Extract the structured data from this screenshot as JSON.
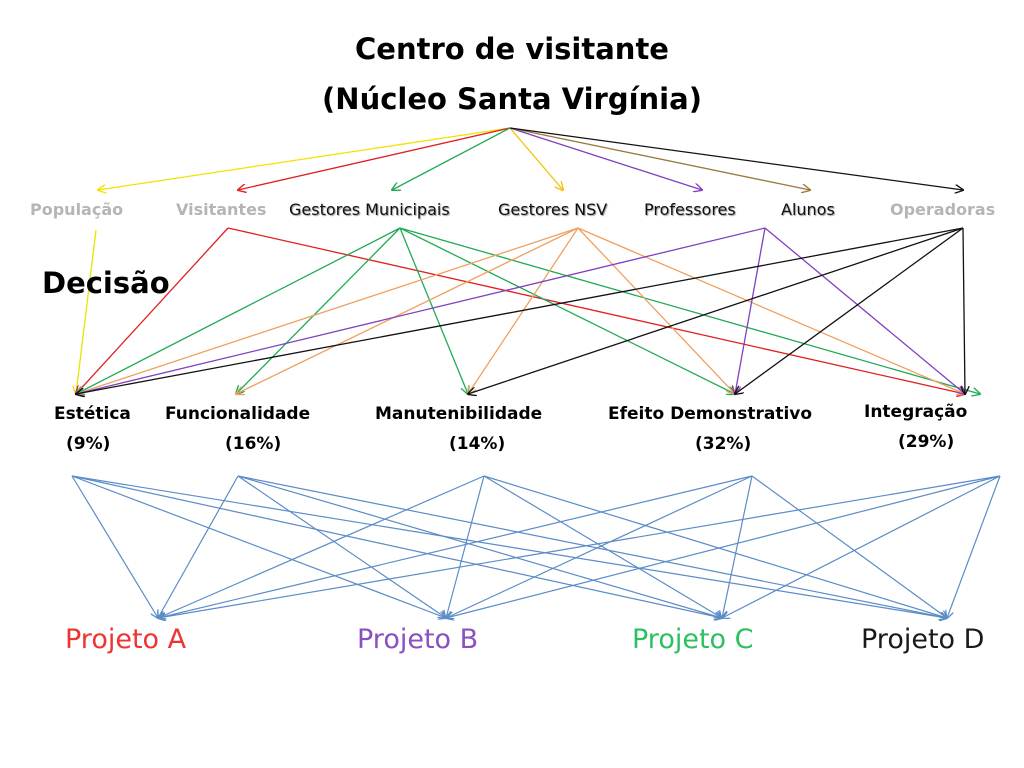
{
  "title": {
    "line1": "Centro de visitante",
    "line2": "(Núcleo Santa Virgínia)"
  },
  "decision_label": "Decisão",
  "stakeholders": [
    {
      "id": "pop",
      "label": "População",
      "color": "#e6e600"
    },
    {
      "id": "vis",
      "label": "Visitantes",
      "color": "#e02020"
    },
    {
      "id": "gm",
      "label": "Gestores Municipais",
      "color": "#22aa55"
    },
    {
      "id": "nsv",
      "label": "Gestores NSV",
      "color": "#f0a060"
    },
    {
      "id": "prof",
      "label": "Professores",
      "color": "#8040c0"
    },
    {
      "id": "alu",
      "label": "Alunos",
      "color": "#8a6a30"
    },
    {
      "id": "op",
      "label": "Operadoras",
      "color": "#111111"
    }
  ],
  "root_to_stakeholder_colors": {
    "pop": "#f2e200",
    "vis": "#e02020",
    "gm": "#22aa55",
    "nsv": "#f5c000",
    "prof": "#8040c0",
    "alu": "#9a7a3a",
    "op": "#111111"
  },
  "criteria": [
    {
      "id": "est",
      "label": "Estética",
      "weight": "(9%)"
    },
    {
      "id": "fun",
      "label": "Funcionalidade",
      "weight": "(16%)"
    },
    {
      "id": "man",
      "label": "Manutenibilidade",
      "weight": "(14%)"
    },
    {
      "id": "efe",
      "label": "Efeito Demonstrativo",
      "weight": "(32%)"
    },
    {
      "id": "int",
      "label": "Integração",
      "weight": "(29%)"
    }
  ],
  "stakeholder_criteria_links": [
    {
      "from": "pop",
      "to": [
        "est"
      ]
    },
    {
      "from": "vis",
      "to": [
        "est",
        "int"
      ]
    },
    {
      "from": "gm",
      "to": [
        "est",
        "fun",
        "man",
        "efe",
        "int"
      ]
    },
    {
      "from": "nsv",
      "to": [
        "est",
        "fun",
        "man",
        "efe",
        "int"
      ]
    },
    {
      "from": "prof",
      "to": [
        "est",
        "efe",
        "int"
      ]
    },
    {
      "from": "op",
      "to": [
        "est",
        "man",
        "efe",
        "int"
      ]
    }
  ],
  "criteria_link_color": "#5b8cc8",
  "projects": [
    {
      "id": "A",
      "label": "Projeto A",
      "color": "#ee3333"
    },
    {
      "id": "B",
      "label": "Projeto B",
      "color": "#8a4fc0"
    },
    {
      "id": "C",
      "label": "Projeto C",
      "color": "#2ec060"
    },
    {
      "id": "D",
      "label": "Projeto D",
      "color": "#1a1a1a"
    }
  ]
}
